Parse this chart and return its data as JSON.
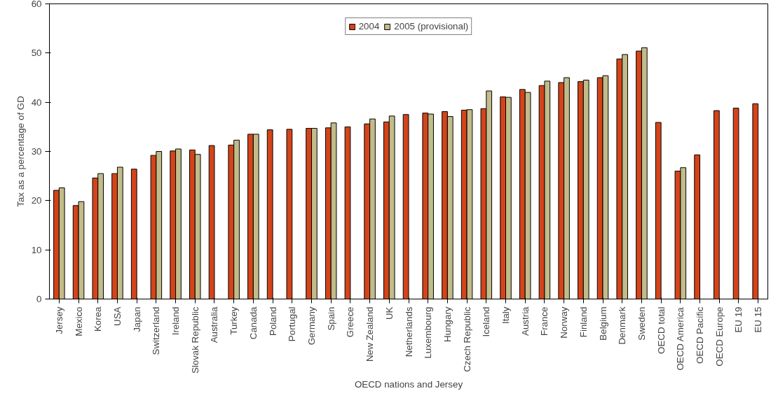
{
  "chart_data": {
    "type": "bar",
    "xlabel": "OECD nations and Jersey",
    "ylabel": "Tax as a percentage of GD",
    "categories": [
      "Jersey",
      "Mexico",
      "Korea",
      "USA",
      "Japan",
      "Switzerland",
      "Ireland",
      "Slovak Republic",
      "Australia",
      "Turkey",
      "Canada",
      "Poland",
      "Portugal",
      "Germany",
      "Spain",
      "Greece",
      "New Zealand",
      "UK",
      "Netherlands",
      "Luxembourg",
      "Hungary",
      "Czech Republic",
      "Iceland",
      "Italy",
      "Austria",
      "France",
      "Norway",
      "Finland",
      "Belgium",
      "Denmark",
      "Sweden",
      "OECD total",
      "OECD America",
      "OECD Pacific",
      "OECD Europe",
      "EU 19",
      "EU 15"
    ],
    "series": [
      {
        "name": "2004",
        "color": "#d4441a",
        "values": [
          22.1,
          19.0,
          24.6,
          25.5,
          26.4,
          29.2,
          30.1,
          30.3,
          31.2,
          31.3,
          33.5,
          34.4,
          34.5,
          34.7,
          34.8,
          35.0,
          35.6,
          36.0,
          37.5,
          37.8,
          38.1,
          38.4,
          38.7,
          41.1,
          42.6,
          43.4,
          44.0,
          44.2,
          45.0,
          48.8,
          50.4,
          35.9,
          26.0,
          29.3,
          38.3,
          38.8,
          39.7
        ]
      },
      {
        "name": "2005 (provisional)",
        "color": "#c2bb8a",
        "values": [
          22.6,
          19.8,
          25.5,
          26.8,
          null,
          30.0,
          30.5,
          29.4,
          null,
          32.3,
          33.5,
          null,
          null,
          34.7,
          35.8,
          null,
          36.6,
          37.2,
          null,
          37.6,
          37.1,
          38.5,
          42.3,
          41.0,
          42.0,
          44.3,
          45.0,
          44.5,
          45.4,
          49.7,
          51.1,
          null,
          26.7,
          null,
          null,
          null,
          null
        ]
      }
    ],
    "ylim": [
      0,
      60
    ],
    "yticks": [
      0,
      10,
      20,
      30,
      40,
      50,
      60
    ],
    "grid": false,
    "legend": "top"
  }
}
